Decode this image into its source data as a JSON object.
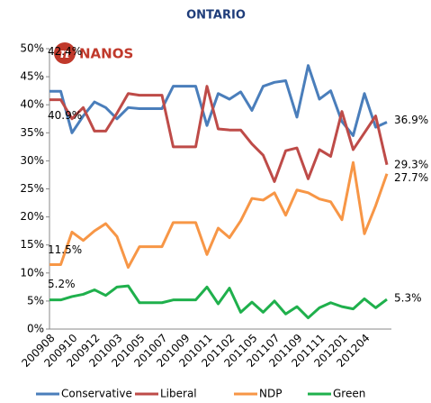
{
  "logo": "NANOS",
  "chart_data": {
    "type": "line",
    "title": "ONTARIO",
    "categories": [
      "200908",
      null,
      "200910",
      null,
      "200912",
      null,
      "201003",
      null,
      "201005",
      null,
      "201007",
      null,
      "201009",
      null,
      "201011",
      null,
      "201102",
      null,
      "201105",
      null,
      "201107",
      null,
      "201109",
      null,
      "201111",
      null,
      "201201",
      null,
      "201204",
      null,
      null
    ],
    "ylim": [
      0,
      50
    ],
    "yticks": [
      {
        "value": 0,
        "label": "0%"
      },
      {
        "value": 5,
        "label": "5%"
      },
      {
        "value": 10,
        "label": "10%"
      },
      {
        "value": 15,
        "label": "15%"
      },
      {
        "value": 20,
        "label": "20%"
      },
      {
        "value": 25,
        "label": "25%"
      },
      {
        "value": 30,
        "label": "30%"
      },
      {
        "value": 35,
        "label": "35%"
      },
      {
        "value": 40,
        "label": "40%"
      },
      {
        "value": 45,
        "label": "45%"
      },
      {
        "value": 50,
        "label": "50%"
      }
    ],
    "grid": false,
    "legend": "bottom",
    "series": [
      {
        "name": "Conservative",
        "color": "#4a7ebb",
        "values": [
          42.4,
          42.4,
          35,
          38,
          40.5,
          39.5,
          37.5,
          39.5,
          39.3,
          39.3,
          39.3,
          43.3,
          43.3,
          43.3,
          36.3,
          42,
          41,
          42.3,
          39,
          43.3,
          44,
          44.3,
          37.8,
          47,
          41,
          42.5,
          37,
          34.5,
          42,
          36,
          36.9
        ],
        "value_labels": [
          "42.4%",
          null,
          null,
          null,
          null,
          null,
          null,
          null,
          null,
          null,
          null,
          null,
          null,
          null,
          null,
          null,
          null,
          null,
          null,
          null,
          null,
          null,
          null,
          null,
          null,
          null,
          null,
          null,
          null,
          null,
          "36.9%"
        ]
      },
      {
        "name": "Liberal",
        "color": "#be4b48",
        "values": [
          40.9,
          40.9,
          37.5,
          39.5,
          35.3,
          35.3,
          38.5,
          42,
          41.7,
          41.7,
          41.7,
          32.5,
          32.5,
          32.5,
          43.3,
          35.7,
          35.5,
          35.5,
          33,
          31,
          26.3,
          31.8,
          32.3,
          26.8,
          32,
          30.8,
          38.8,
          32,
          35,
          38,
          29.3
        ],
        "value_labels": [
          "40.9%",
          null,
          null,
          null,
          null,
          null,
          null,
          null,
          null,
          null,
          null,
          null,
          null,
          null,
          null,
          null,
          null,
          null,
          null,
          null,
          null,
          null,
          null,
          null,
          null,
          null,
          null,
          null,
          null,
          null,
          "29.3%"
        ]
      },
      {
        "name": "NDP",
        "color": "#f79646",
        "values": [
          11.5,
          11.5,
          17.3,
          15.8,
          17.5,
          18.8,
          16.5,
          11,
          14.7,
          14.7,
          14.7,
          19,
          19,
          19,
          13.3,
          18,
          16.3,
          19.3,
          23.3,
          23,
          24.3,
          20.3,
          24.8,
          24.3,
          23.2,
          22.7,
          19.5,
          29.7,
          17,
          22,
          27.7
        ],
        "value_labels": [
          "11.5%",
          null,
          null,
          null,
          null,
          null,
          null,
          null,
          null,
          null,
          null,
          null,
          null,
          null,
          null,
          null,
          null,
          null,
          null,
          null,
          null,
          null,
          null,
          null,
          null,
          null,
          null,
          null,
          null,
          null,
          "27.7%"
        ]
      },
      {
        "name": "Green",
        "color": "#1fb04c",
        "values": [
          5.2,
          5.2,
          5.8,
          6.2,
          7,
          6,
          7.5,
          7.7,
          4.7,
          4.7,
          4.7,
          5.2,
          5.2,
          5.2,
          7.5,
          4.5,
          7.3,
          3,
          4.8,
          3,
          5,
          2.7,
          4,
          2,
          3.8,
          4.7,
          4,
          3.6,
          5.4,
          3.8,
          5.3
        ],
        "value_labels": [
          "5.2%",
          null,
          null,
          null,
          null,
          null,
          null,
          null,
          null,
          null,
          null,
          null,
          null,
          null,
          null,
          null,
          null,
          null,
          null,
          null,
          null,
          null,
          null,
          null,
          null,
          null,
          null,
          null,
          null,
          null,
          "5.3%"
        ]
      }
    ]
  }
}
